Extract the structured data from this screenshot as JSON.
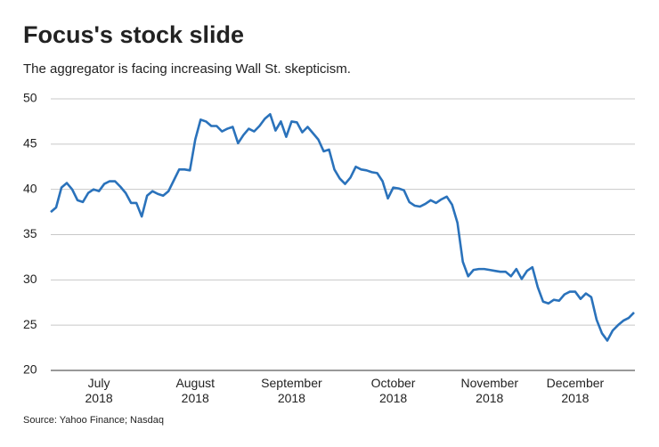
{
  "chart_data": {
    "type": "line",
    "title": "Focus's stock slide",
    "subtitle": "The aggregator is facing increasing Wall St. skepticism.",
    "source": "Source: Yahoo Finance; Nasdaq",
    "color": "#2a72bb",
    "grid": true,
    "ylim": [
      20,
      50
    ],
    "yticks": [
      20,
      25,
      30,
      35,
      40,
      45,
      50
    ],
    "categories": [
      null,
      null,
      null,
      null,
      null,
      null,
      null,
      null,
      null,
      "July 2018",
      null,
      null,
      null,
      null,
      null,
      null,
      null,
      null,
      null,
      null,
      null,
      null,
      null,
      null,
      null,
      null,
      null,
      "August 2018",
      null,
      null,
      null,
      null,
      null,
      null,
      null,
      null,
      null,
      null,
      null,
      null,
      null,
      null,
      null,
      null,
      null,
      "September 2018",
      null,
      null,
      null,
      null,
      null,
      null,
      null,
      null,
      null,
      null,
      null,
      null,
      null,
      null,
      null,
      null,
      null,
      null,
      "October 2018",
      null,
      null,
      null,
      null,
      null,
      null,
      null,
      null,
      null,
      null,
      null,
      null,
      null,
      null,
      null,
      null,
      null,
      "November 2018",
      null,
      null,
      null,
      null,
      null,
      null,
      null,
      null,
      null,
      null,
      null,
      null,
      null,
      null,
      null,
      "December 2018",
      null,
      null,
      null,
      null,
      null,
      null,
      null,
      null,
      null,
      null,
      null
    ],
    "values": [
      37.5,
      38,
      40.2,
      40.7,
      40,
      38.8,
      38.6,
      39.6,
      40,
      39.8,
      40.6,
      40.9,
      40.9,
      40.3,
      39.6,
      38.5,
      38.5,
      37,
      39.3,
      39.8,
      39.5,
      39.3,
      39.8,
      41,
      42.2,
      42.2,
      42.1,
      45.5,
      47.7,
      47.5,
      47,
      47,
      46.4,
      46.7,
      46.9,
      45.1,
      46,
      46.7,
      46.4,
      47,
      47.8,
      48.3,
      46.5,
      47.5,
      45.8,
      47.5,
      47.4,
      46.3,
      46.9,
      46.2,
      45.5,
      44.2,
      44.4,
      42.2,
      41.2,
      40.6,
      41.3,
      42.5,
      42.2,
      42.1,
      41.9,
      41.8,
      40.9,
      39,
      40.2,
      40.1,
      39.9,
      38.6,
      38.2,
      38.1,
      38.4,
      38.8,
      38.5,
      38.9,
      39.2,
      38.3,
      36.3,
      32,
      30.4,
      31.1,
      31.2,
      31.2,
      31.1,
      31.0,
      30.9,
      30.9,
      30.4,
      31.2,
      30.1,
      31,
      31.4,
      29.2,
      27.6,
      27.4,
      27.8,
      27.7,
      28.4,
      28.7,
      28.7,
      27.9,
      28.5,
      28.1,
      25.6,
      24.1,
      23.3,
      24.4,
      25,
      25.5,
      25.8,
      26.4
    ]
  }
}
